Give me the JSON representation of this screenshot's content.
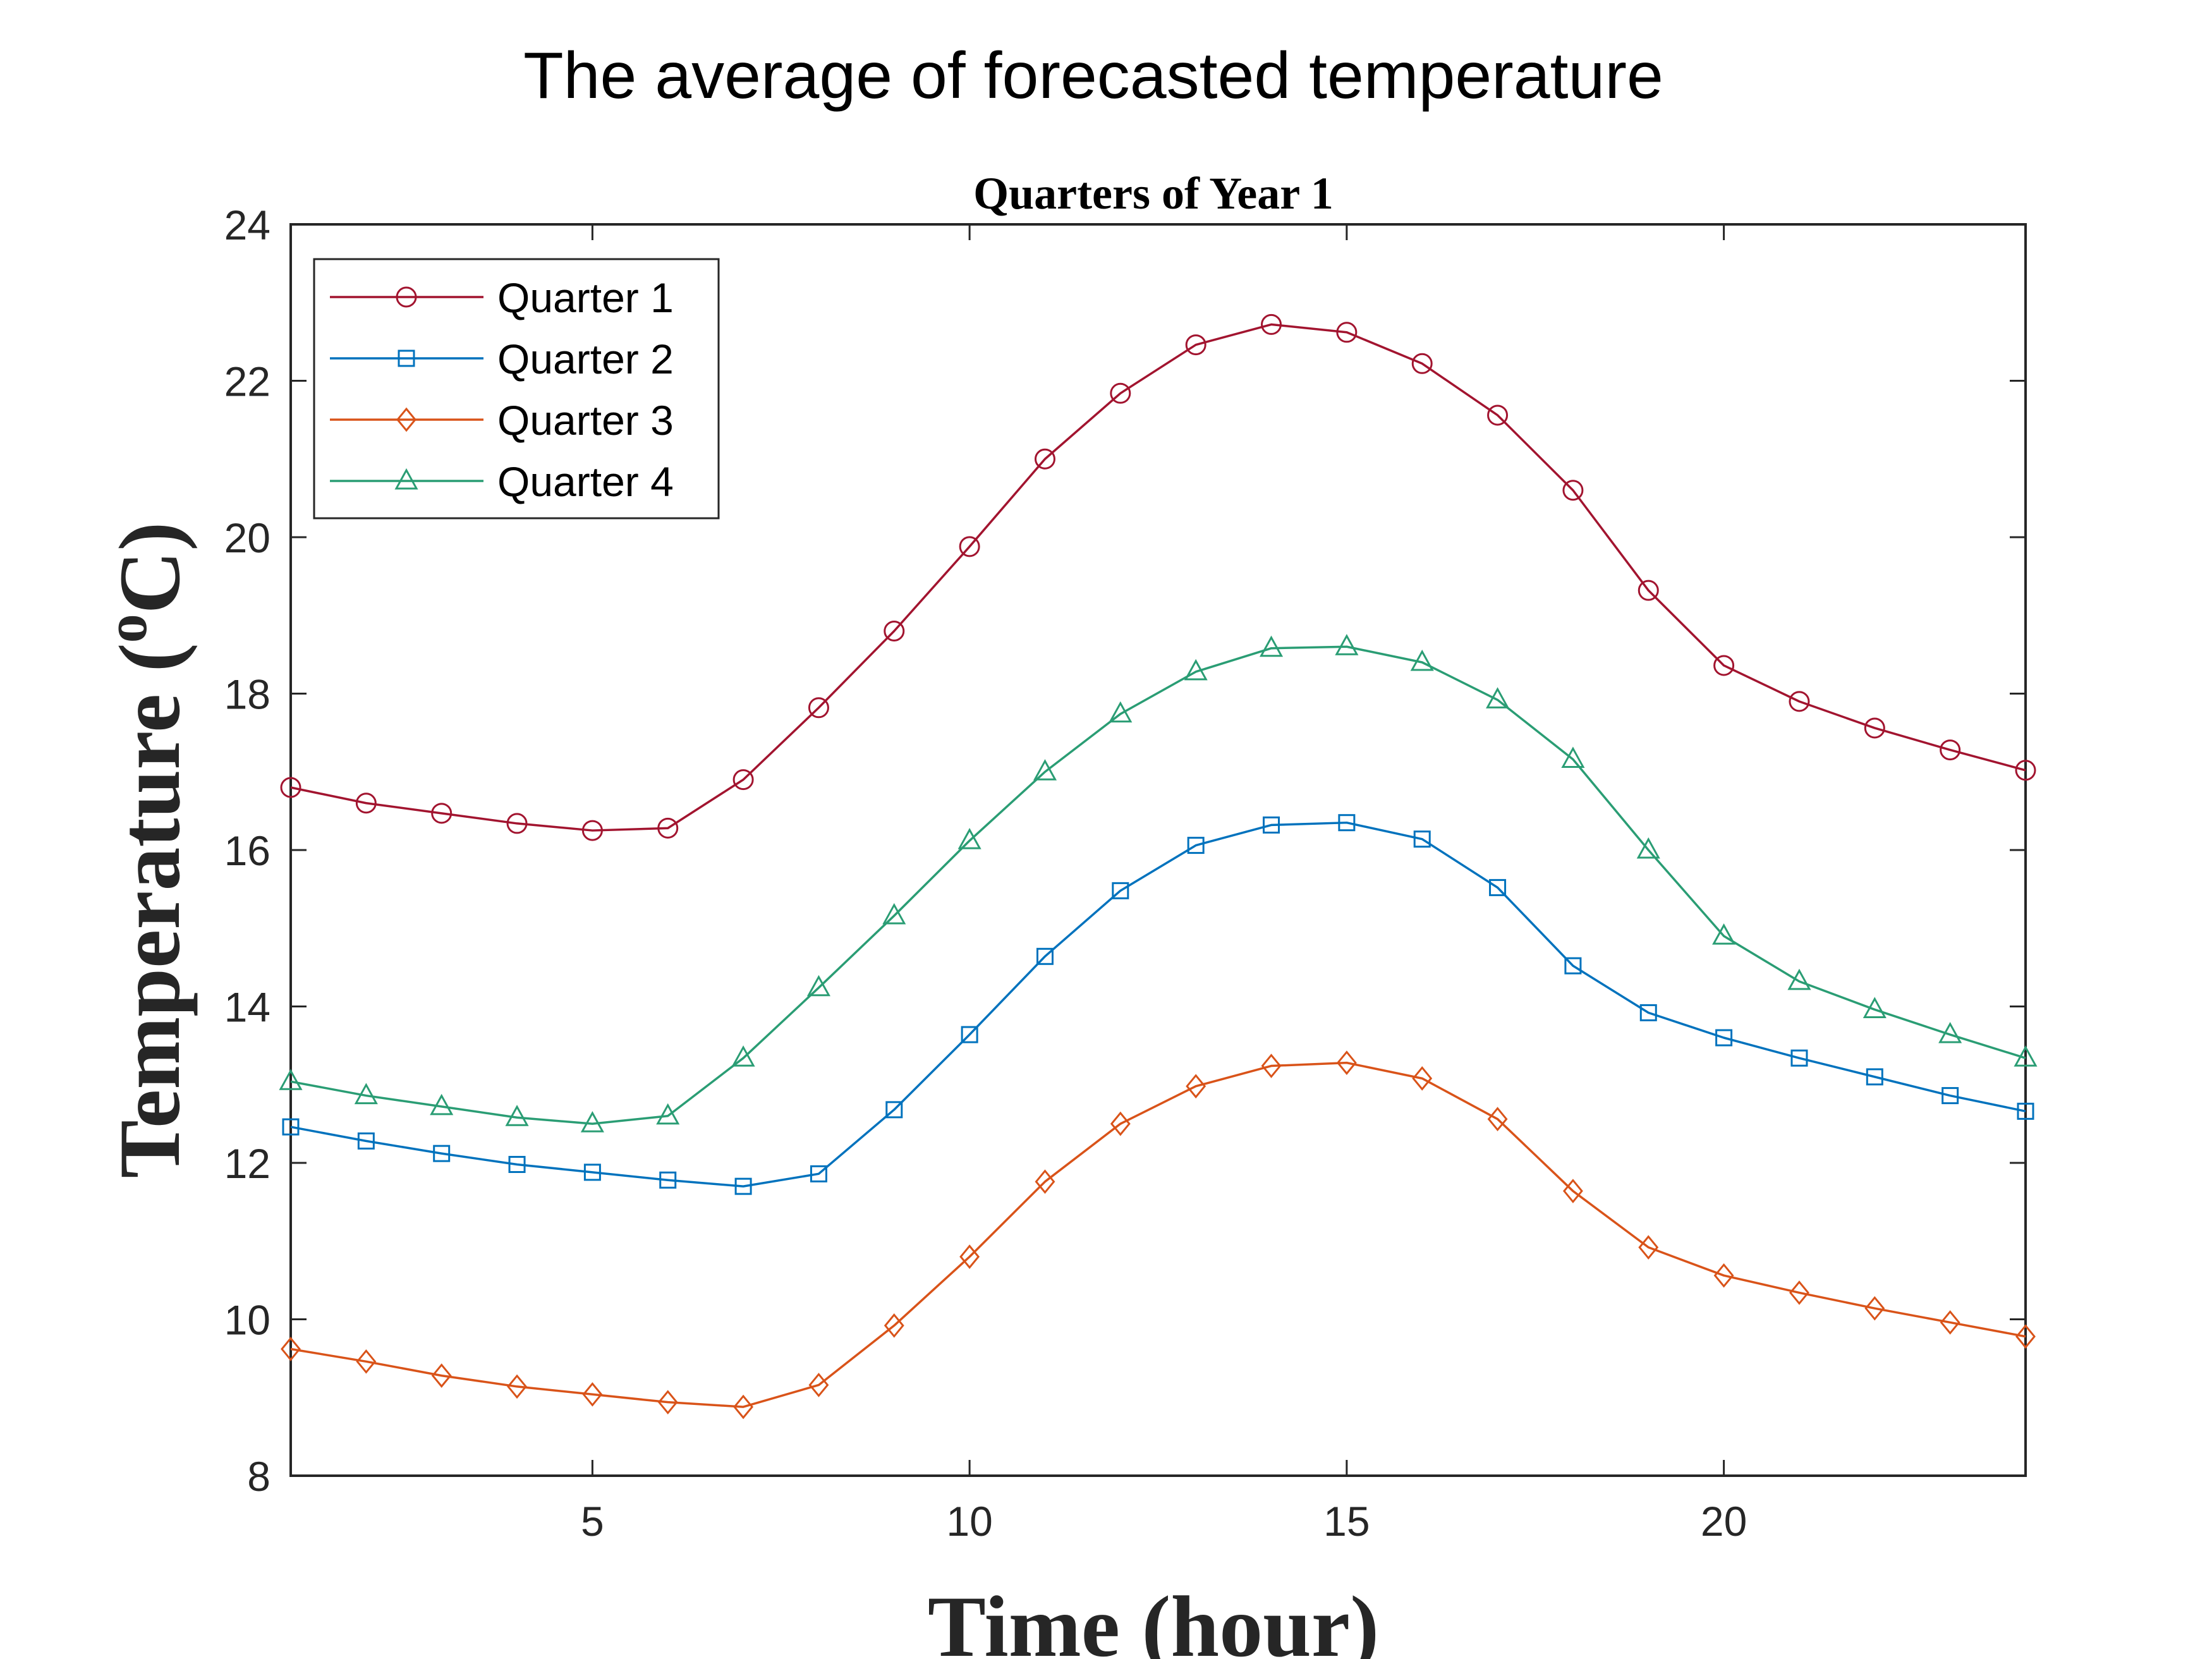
{
  "chart_data": {
    "type": "line",
    "title": "The average of forecasted temperature",
    "subtitle": "Quarters of Year 1",
    "xlabel": "Time (hour)",
    "ylabel_main": "Temperature (",
    "ylabel_sup": "o",
    "ylabel_end": "C)",
    "xlim": [
      1,
      24
    ],
    "ylim": [
      8,
      24
    ],
    "xticks": [
      5,
      10,
      15,
      20
    ],
    "yticks": [
      8,
      10,
      12,
      14,
      16,
      18,
      20,
      22,
      24
    ],
    "grid": false,
    "legend_position": "top-left",
    "x": [
      1,
      2,
      3,
      4,
      5,
      6,
      7,
      8,
      9,
      10,
      11,
      12,
      13,
      14,
      15,
      16,
      17,
      18,
      19,
      20,
      21,
      22,
      23,
      24
    ],
    "series": [
      {
        "name": "Quarter 1",
        "color": "#A2142F",
        "marker": "circle",
        "values": [
          16.8,
          16.6,
          16.47,
          16.34,
          16.25,
          16.28,
          16.9,
          17.82,
          18.8,
          19.88,
          21.0,
          21.84,
          22.46,
          22.72,
          22.62,
          22.22,
          21.56,
          20.6,
          19.32,
          18.36,
          17.9,
          17.56,
          17.28,
          17.02
        ]
      },
      {
        "name": "Quarter 2",
        "color": "#0072BD",
        "marker": "square",
        "values": [
          12.46,
          12.28,
          12.12,
          11.98,
          11.88,
          11.78,
          11.7,
          11.86,
          12.68,
          13.64,
          14.64,
          15.48,
          16.06,
          16.32,
          16.35,
          16.14,
          15.52,
          14.52,
          13.92,
          13.6,
          13.34,
          13.1,
          12.86,
          12.66
        ]
      },
      {
        "name": "Quarter 3",
        "color": "#D95319",
        "marker": "diamond",
        "values": [
          9.62,
          9.46,
          9.28,
          9.14,
          9.04,
          8.94,
          8.88,
          9.16,
          9.92,
          10.8,
          11.76,
          12.5,
          12.98,
          13.24,
          13.28,
          13.08,
          12.56,
          11.64,
          10.92,
          10.56,
          10.34,
          10.14,
          9.96,
          9.78
        ]
      },
      {
        "name": "Quarter 4",
        "color": "#2A9D74",
        "marker": "triangle",
        "values": [
          13.04,
          12.86,
          12.72,
          12.58,
          12.5,
          12.6,
          13.34,
          14.24,
          15.16,
          16.12,
          17.0,
          17.74,
          18.28,
          18.58,
          18.6,
          18.4,
          17.92,
          17.16,
          16.0,
          14.9,
          14.32,
          13.96,
          13.64,
          13.34
        ]
      }
    ]
  }
}
